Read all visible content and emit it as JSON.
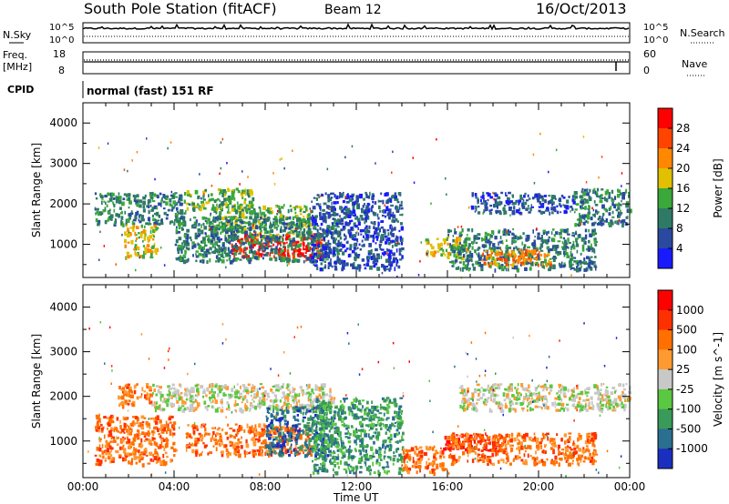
{
  "header": {
    "station": "South Pole Station (fitACF)",
    "beam": "Beam 12",
    "date": "16/Oct/2013"
  },
  "noise_panel": {
    "left_label": "N.Sky",
    "left_ticks": [
      "10^5",
      "10^0"
    ],
    "right_label": "N.Search",
    "right_ticks": [
      "10^5",
      "10^0"
    ]
  },
  "freq_panel": {
    "left_label_line1": "Freq.",
    "left_label_line2": "[MHz]",
    "left_ticks": [
      "18",
      "8"
    ],
    "right_label": "Nave",
    "right_ticks": [
      "60",
      "0"
    ]
  },
  "cpid_panel": {
    "label": "CPID",
    "text": "normal (fast) 151 RF"
  },
  "time_axis": {
    "ticks": [
      "00:00",
      "04:00",
      "08:00",
      "12:00",
      "16:00",
      "20:00",
      "00:00"
    ],
    "xlabel": "Time UT"
  },
  "chart_data": [
    {
      "type": "heatmap",
      "title": "",
      "xlabel": "Time UT",
      "ylabel": "Slant Range [km]",
      "xlim": [
        0,
        24
      ],
      "ylim": [
        180,
        4500
      ],
      "y_ticks": [
        "1000",
        "2000",
        "3000",
        "4000"
      ],
      "colorbar_label": "Power [dB]",
      "colorbar_ticks": [
        "28",
        "24",
        "20",
        "16",
        "12",
        "8",
        "4"
      ],
      "colors": [
        "#1a1aff",
        "#2a4aa0",
        "#2f7a66",
        "#3aa83a",
        "#e0c000",
        "#ff8800",
        "#ff4400",
        "#ff0000"
      ],
      "regions": [
        {
          "t": [
            0.5,
            4.5
          ],
          "r": [
            1500,
            2300
          ],
          "level": 2
        },
        {
          "t": [
            1.8,
            3.2
          ],
          "r": [
            700,
            1500
          ],
          "level": 4
        },
        {
          "t": [
            4.5,
            7.5
          ],
          "r": [
            1900,
            2400
          ],
          "level": 3
        },
        {
          "t": [
            5.5,
            10.0
          ],
          "r": [
            1200,
            2000
          ],
          "level": 3
        },
        {
          "t": [
            6.5,
            10.5
          ],
          "r": [
            700,
            1300
          ],
          "level": 7
        },
        {
          "t": [
            4.0,
            11.2
          ],
          "r": [
            600,
            1700
          ],
          "level": 2
        },
        {
          "t": [
            10.0,
            14.0
          ],
          "r": [
            400,
            2300
          ],
          "level": 1
        },
        {
          "t": [
            15.0,
            17.0
          ],
          "r": [
            700,
            1200
          ],
          "level": 4
        },
        {
          "t": [
            16.0,
            22.5
          ],
          "r": [
            400,
            1400
          ],
          "level": 2
        },
        {
          "t": [
            17.5,
            20.5
          ],
          "r": [
            500,
            900
          ],
          "level": 5
        },
        {
          "t": [
            17.0,
            21.5
          ],
          "r": [
            1800,
            2300
          ],
          "level": 1
        },
        {
          "t": [
            21.5,
            24.0
          ],
          "r": [
            1500,
            2400
          ],
          "level": 2
        }
      ]
    },
    {
      "type": "heatmap",
      "title": "",
      "xlabel": "Time UT",
      "ylabel": "Slant Range [km]",
      "xlim": [
        0,
        24
      ],
      "ylim": [
        180,
        4500
      ],
      "y_ticks": [
        "1000",
        "2000",
        "3000",
        "4000"
      ],
      "colorbar_label": "Velocity [m s^-1]",
      "colorbar_ticks": [
        "1000",
        "500",
        "100",
        "25",
        "-25",
        "-100",
        "-500",
        "-1000"
      ],
      "colors": [
        "#1a2fbf",
        "#2a6f90",
        "#3a9a5a",
        "#5ac840",
        "#c8c8c8",
        "#ff9a30",
        "#ff7000",
        "#ff3000",
        "#ff0000"
      ],
      "regions": [
        {
          "t": [
            0.5,
            4.0
          ],
          "r": [
            500,
            1600
          ],
          "level": 6
        },
        {
          "t": [
            1.5,
            3.0
          ],
          "r": [
            1800,
            2300
          ],
          "level": 6
        },
        {
          "t": [
            3.0,
            11.0
          ],
          "r": [
            1700,
            2300
          ],
          "level": 4
        },
        {
          "t": [
            4.5,
            10.0
          ],
          "r": [
            700,
            1400
          ],
          "level": 6
        },
        {
          "t": [
            8.0,
            11.0
          ],
          "r": [
            700,
            1800
          ],
          "level": 1
        },
        {
          "t": [
            10.0,
            14.0
          ],
          "r": [
            300,
            2000
          ],
          "level": 2
        },
        {
          "t": [
            14.0,
            16.0
          ],
          "r": [
            300,
            900
          ],
          "level": 6
        },
        {
          "t": [
            15.8,
            18.5
          ],
          "r": [
            800,
            1200
          ],
          "level": 8
        },
        {
          "t": [
            16.0,
            22.5
          ],
          "r": [
            500,
            1200
          ],
          "level": 6
        },
        {
          "t": [
            16.5,
            24.0
          ],
          "r": [
            1700,
            2300
          ],
          "level": 4
        }
      ]
    }
  ]
}
